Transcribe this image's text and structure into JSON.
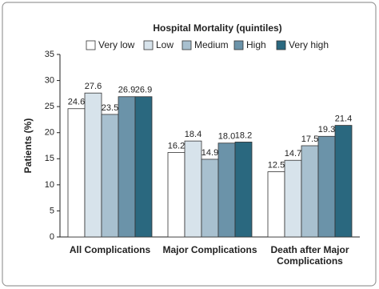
{
  "chart_data": {
    "type": "bar",
    "legend_title": "Hospital Mortality (quintiles)",
    "y_label": "Patients (%)",
    "categories": [
      "All Complications",
      "Major Complications",
      "Death after Major Complications"
    ],
    "series": [
      {
        "name": "Very low",
        "color": "#ffffff",
        "values": [
          24.6,
          16.2,
          12.5
        ]
      },
      {
        "name": "Low",
        "color": "#d7e3eb",
        "values": [
          27.6,
          18.4,
          14.7
        ]
      },
      {
        "name": "Medium",
        "color": "#a8c0cf",
        "values": [
          23.5,
          14.9,
          17.5
        ]
      },
      {
        "name": "High",
        "color": "#6b93a9",
        "values": [
          26.9,
          18.0,
          19.3
        ],
        "value_labels": [
          "26.9",
          "18.0",
          "19.3"
        ]
      },
      {
        "name": "Very high",
        "color": "#2a687f",
        "values": [
          26.9,
          18.2,
          21.4
        ]
      }
    ],
    "ylim": [
      0,
      35
    ],
    "yticks": [
      0,
      5,
      10,
      15,
      20,
      25,
      30,
      35
    ],
    "legend": "top"
  }
}
